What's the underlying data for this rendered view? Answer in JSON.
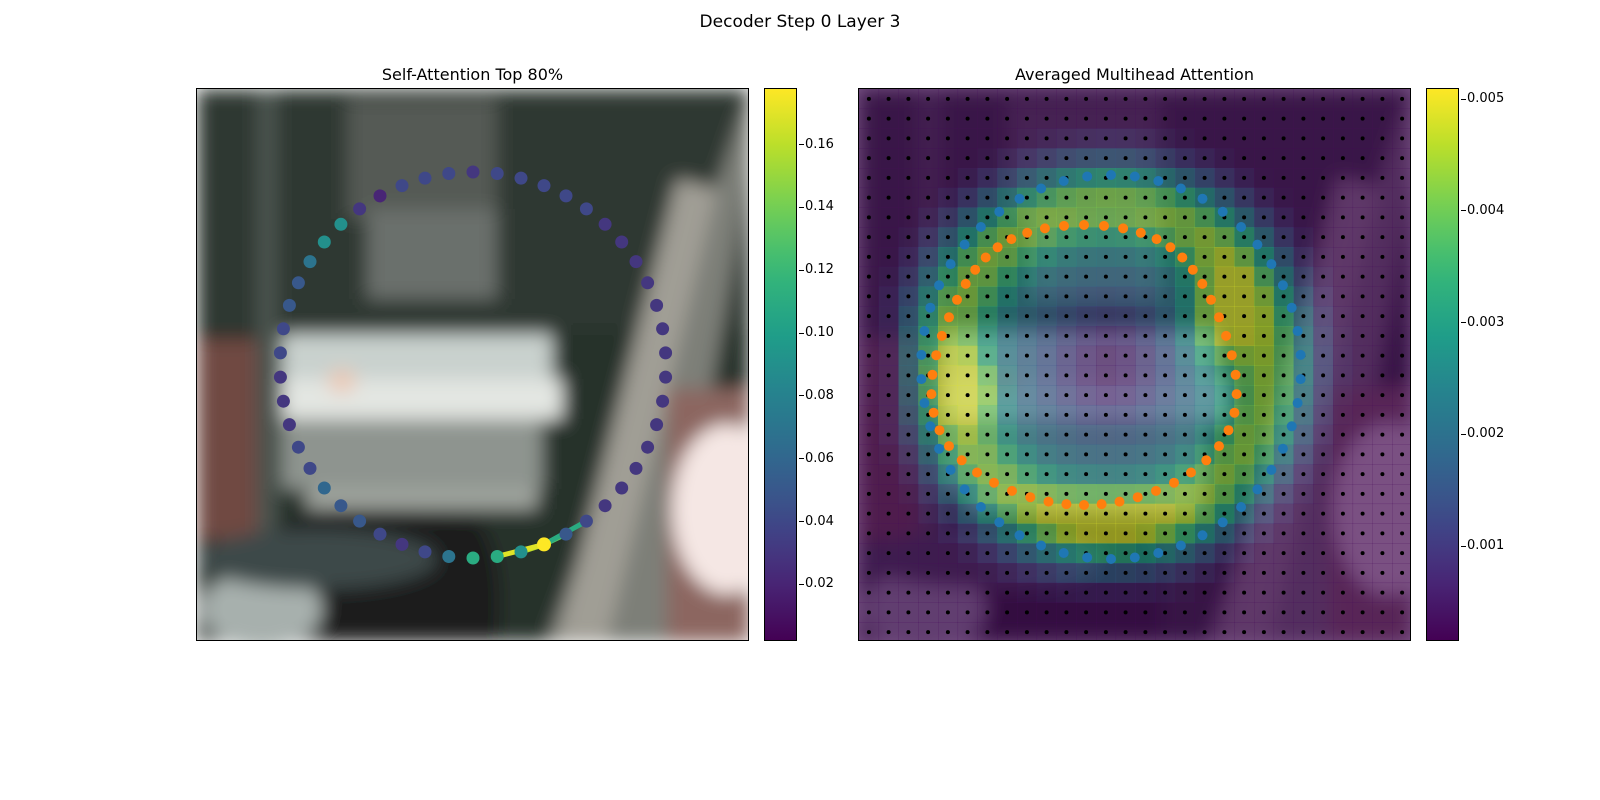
{
  "figure_title": "Decoder Step 0 Layer 3",
  "panels": [
    {
      "title": "Self-Attention Top 80%"
    },
    {
      "title": "Averaged Multihead Attention"
    }
  ],
  "chart_data": [
    {
      "type": "scatter",
      "title": "Self-Attention Top 80%",
      "description_colormap": "viridis",
      "colorbar": {
        "range": [
          0.002,
          0.178
        ],
        "ticks": [
          "0.02",
          "0.04",
          "0.06",
          "0.08",
          "0.10",
          "0.12",
          "0.14",
          "0.16"
        ],
        "tick_values": [
          0.02,
          0.04,
          0.06,
          0.08,
          0.1,
          0.12,
          0.14,
          0.16
        ]
      },
      "n_points": 50,
      "point_weights": [
        0.03,
        0.04,
        0.04,
        0.04,
        0.04,
        0.04,
        0.03,
        0.03,
        0.03,
        0.03,
        0.03,
        0.03,
        0.03,
        0.03,
        0.03,
        0.03,
        0.03,
        0.03,
        0.03,
        0.03,
        0.04,
        0.05,
        0.07,
        0.09,
        0.11,
        0.11,
        0.07,
        0.04,
        0.03,
        0.04,
        0.05,
        0.05,
        0.06,
        0.04,
        0.04,
        0.03,
        0.03,
        0.03,
        0.04,
        0.04,
        0.05,
        0.05,
        0.07,
        0.09,
        0.09,
        0.03,
        0.02,
        0.04,
        0.04,
        0.04
      ],
      "highlighted_point": 22,
      "attention_links": [
        {
          "to": 21,
          "weight": 0.13
        },
        {
          "to": 20,
          "weight": 0.11
        },
        {
          "to": 23,
          "weight": 0.16
        },
        {
          "to": 24,
          "weight": 0.17
        }
      ]
    },
    {
      "type": "heatmap",
      "title": "Averaged Multihead Attention",
      "description_colormap": "viridis",
      "grid": [
        28,
        28
      ],
      "colorbar": {
        "range": [
          0.00015,
          0.0051
        ],
        "ticks": [
          "0.001",
          "0.002",
          "0.003",
          "0.004",
          "0.005"
        ],
        "tick_values": [
          0.001,
          0.002,
          0.003,
          0.004,
          0.005
        ]
      },
      "series": [
        {
          "marker": "blue",
          "count": 50
        },
        {
          "marker": "orange",
          "count": 50
        },
        {
          "marker": "black-dots",
          "count": 784
        }
      ]
    }
  ],
  "colors": {
    "blue": "#1f77b4",
    "orange": "#ff7f0e",
    "black": "#000000"
  }
}
